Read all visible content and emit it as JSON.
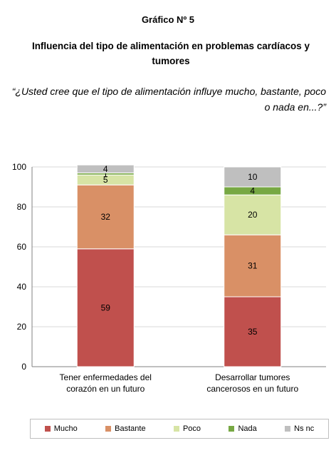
{
  "header": {
    "label": "Gráfico Nº 5",
    "title": "Influencia del tipo de alimentación en problemas cardíacos y tumores",
    "question": "“¿Usted cree que el tipo de alimentación influye mucho, bastante, poco o nada en...?”"
  },
  "chart_data": {
    "type": "bar",
    "stacked": true,
    "categories": [
      "Tener enfermedades del corazón en un futuro",
      "Desarrollar tumores cancerosos en un futuro"
    ],
    "series": [
      {
        "name": "Mucho",
        "color": "#c0504d",
        "values": [
          59,
          35
        ]
      },
      {
        "name": "Bastante",
        "color": "#d99066",
        "values": [
          32,
          31
        ]
      },
      {
        "name": "Poco",
        "color": "#d7e4a5",
        "values": [
          5,
          20
        ]
      },
      {
        "name": "Nada",
        "color": "#77a843",
        "values": [
          1,
          4
        ]
      },
      {
        "name": "Ns nc",
        "color": "#bfbfbf",
        "values": [
          4,
          10
        ]
      }
    ],
    "ylim": [
      0,
      100
    ],
    "yticks": [
      0,
      20,
      40,
      60,
      80,
      100
    ],
    "grid": true,
    "legend": "bottom",
    "category_lines": [
      [
        "Tener enfermedades del",
        "corazón en un futuro"
      ],
      [
        "Desarrollar tumores",
        "cancerosos en un futuro"
      ]
    ]
  }
}
